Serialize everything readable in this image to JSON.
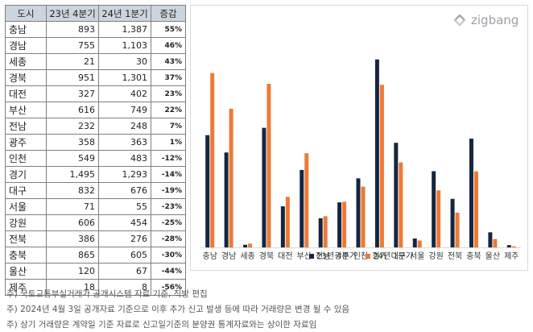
{
  "table": {
    "headers": [
      "도시",
      "23년 4분기",
      "24년 1분기",
      "증감"
    ],
    "rows": [
      [
        "충남",
        "893",
        "1,387",
        "55%"
      ],
      [
        "경남",
        "755",
        "1,103",
        "46%"
      ],
      [
        "세종",
        "21",
        "30",
        "43%"
      ],
      [
        "경북",
        "951",
        "1,301",
        "37%"
      ],
      [
        "대전",
        "327",
        "402",
        "23%"
      ],
      [
        "부산",
        "616",
        "749",
        "22%"
      ],
      [
        "전남",
        "232",
        "248",
        "7%"
      ],
      [
        "광주",
        "358",
        "363",
        "1%"
      ],
      [
        "인천",
        "549",
        "483",
        "-12%"
      ],
      [
        "경기",
        "1,495",
        "1,293",
        "-14%"
      ],
      [
        "대구",
        "832",
        "676",
        "-19%"
      ],
      [
        "서울",
        "71",
        "55",
        "-23%"
      ],
      [
        "강원",
        "606",
        "454",
        "-25%"
      ],
      [
        "전북",
        "386",
        "276",
        "-28%"
      ],
      [
        "충북",
        "865",
        "605",
        "-30%"
      ],
      [
        "울산",
        "120",
        "67",
        "-44%"
      ],
      [
        "제주",
        "18",
        "8",
        "-56%"
      ]
    ]
  },
  "logo": {
    "text": "zigbang",
    "icon": "zigbang-logo-icon"
  },
  "colors": {
    "series1": "#17263f",
    "series2": "#ec7a37",
    "header_bg": "#cbd5df"
  },
  "chart_data": {
    "type": "bar",
    "categories": [
      "충남",
      "경남",
      "세종",
      "경북",
      "대전",
      "부산",
      "전남",
      "광주",
      "인천",
      "경기",
      "대구",
      "서울",
      "강원",
      "전북",
      "충북",
      "울산",
      "제주"
    ],
    "series": [
      {
        "name": "23년 4분기",
        "values": [
          893,
          755,
          21,
          951,
          327,
          616,
          232,
          358,
          549,
          1495,
          832,
          71,
          606,
          386,
          865,
          120,
          18
        ]
      },
      {
        "name": "24년 1분기",
        "values": [
          1387,
          1103,
          30,
          1301,
          402,
          749,
          248,
          363,
          483,
          1293,
          676,
          55,
          454,
          276,
          605,
          67,
          8
        ]
      }
    ],
    "ylim": [
      0,
      1500
    ],
    "legend": "bottom",
    "grid": false
  },
  "notes": [
    "주) 국토교통부실거래가 공개시스템 자료 기준, 직방 편집",
    "주) 2024년 4월 3일 공개자료 기준으로 이후 추가 신고 발생 등에 따라 거래량은 변경 될 수 있음",
    "주) 상기 거래량은 계약일 기준 자료로 신고일기준의 분양권 통계자료와는 상이한 자료임"
  ]
}
